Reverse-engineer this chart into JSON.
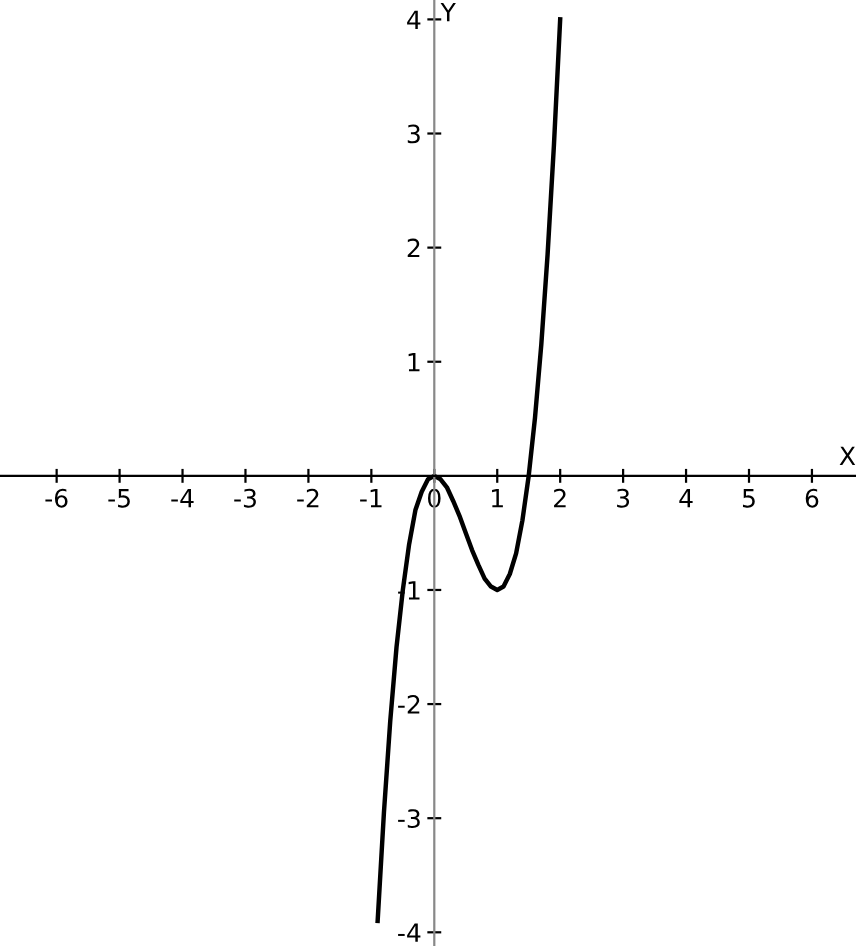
{
  "chart_data": {
    "type": "line",
    "xlabel": "X",
    "ylabel": "Y",
    "series": [
      {
        "color": "#000000",
        "x": [
          -0.9,
          -0.8,
          -0.7,
          -0.6,
          -0.5,
          -0.4,
          -0.3,
          -0.2,
          -0.1,
          0,
          0.1,
          0.2,
          0.3,
          0.4,
          0.5,
          0.6,
          0.7,
          0.8,
          0.9,
          1,
          1.1,
          1.2,
          1.3,
          1.4,
          1.5,
          1.6,
          1.7,
          1.8,
          1.9,
          2
        ],
        "values": [
          -3.9,
          -2.95,
          -2.15,
          -1.5,
          -1.0,
          -0.6,
          -0.3,
          -0.14,
          -0.03,
          0,
          -0.03,
          -0.1,
          -0.22,
          -0.35,
          -0.5,
          -0.65,
          -0.78,
          -0.9,
          -0.97,
          -1.0,
          -0.97,
          -0.86,
          -0.68,
          -0.39,
          0,
          0.51,
          1.15,
          1.94,
          2.89,
          4
        ]
      }
    ],
    "xlim": [
      -6.9,
      6.7
    ],
    "ylim": [
      -4.12,
      4.17
    ],
    "xticks": [
      -6,
      -5,
      -4,
      -3,
      -2,
      -1,
      {
        "value": 0,
        "label": "0"
      },
      1,
      2,
      3,
      4,
      5,
      6
    ],
    "yticks": [
      -4,
      -3,
      -2,
      -1,
      1,
      2,
      3,
      4
    ],
    "grid": false,
    "line_style": "solid",
    "marker": "none"
  }
}
